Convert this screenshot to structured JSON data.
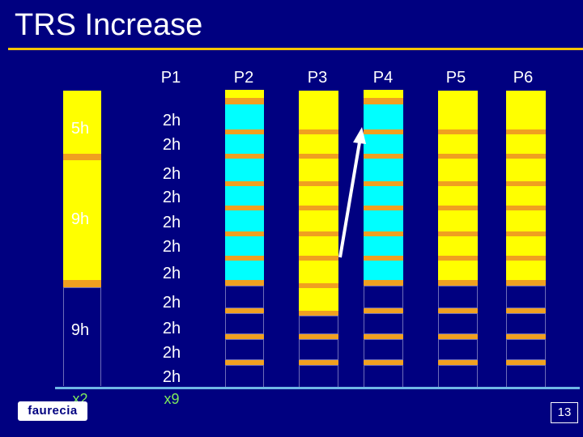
{
  "title": "TRS Increase",
  "headers": [
    "P1",
    "P2",
    "P3",
    "P4",
    "P5",
    "P6"
  ],
  "left_labels": [
    "5h",
    "9h",
    "9h"
  ],
  "p1_labels": [
    "2h",
    "2h",
    "2h",
    "2h",
    "2h",
    "2h",
    "2h",
    "2h",
    "2h",
    "2h",
    "2h"
  ],
  "multipliers": {
    "left": "x2",
    "p1": "x9"
  },
  "logo": "faurecia",
  "page_number": "13",
  "colors": {
    "background": "#000080",
    "yellow": "#ffff00",
    "cyan": "#00ffff",
    "orange": "#f0a020",
    "accent_line": "#f5c400",
    "multiplier_green": "#7dea5b"
  },
  "columns": [
    {
      "name": "P2",
      "filled": "cyan",
      "filled_slots": 8
    },
    {
      "name": "P3",
      "filled": "yellow",
      "filled_slots": 9
    },
    {
      "name": "P4",
      "filled": "cyan",
      "filled_slots": 8
    },
    {
      "name": "P5",
      "filled": "yellow",
      "filled_slots": 9
    },
    {
      "name": "P6",
      "filled": "yellow",
      "filled_slots": 9
    }
  ]
}
